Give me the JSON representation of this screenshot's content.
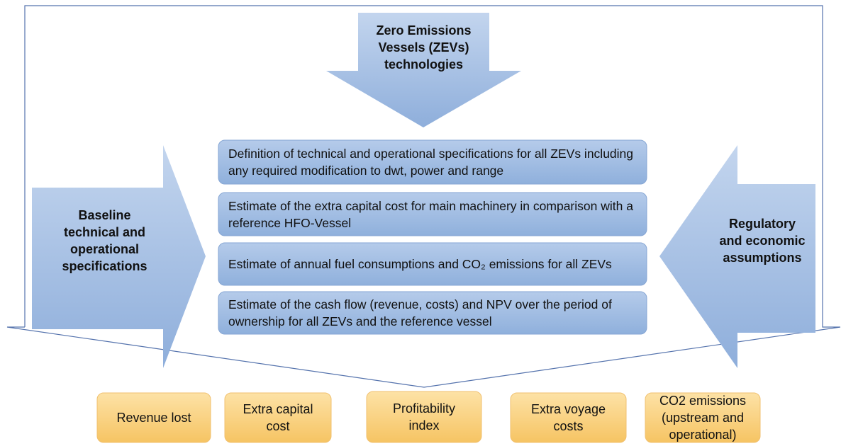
{
  "top_arrow": "Zero Emissions Vessels (ZEVs) technologies",
  "left_arrow": "Baseline technical and operational specifications",
  "right_arrow": "Regulatory and economic assumptions",
  "steps": [
    "Definition of technical and operational specifications for all ZEVs including any required modification to dwt, power and range",
    "Estimate of the extra capital cost for main machinery in comparison with a reference HFO-Vessel",
    "Estimate of annual fuel consumptions and CO₂ emissions for all ZEVs",
    "Estimate of the cash flow (revenue, costs) and NPV over the period of ownership for all ZEVs and the reference vessel"
  ],
  "outputs": [
    "Revenue lost",
    "Extra capital cost",
    "Profitability index",
    "Extra voyage costs",
    "CO2 emissions (upstream and operational)"
  ]
}
